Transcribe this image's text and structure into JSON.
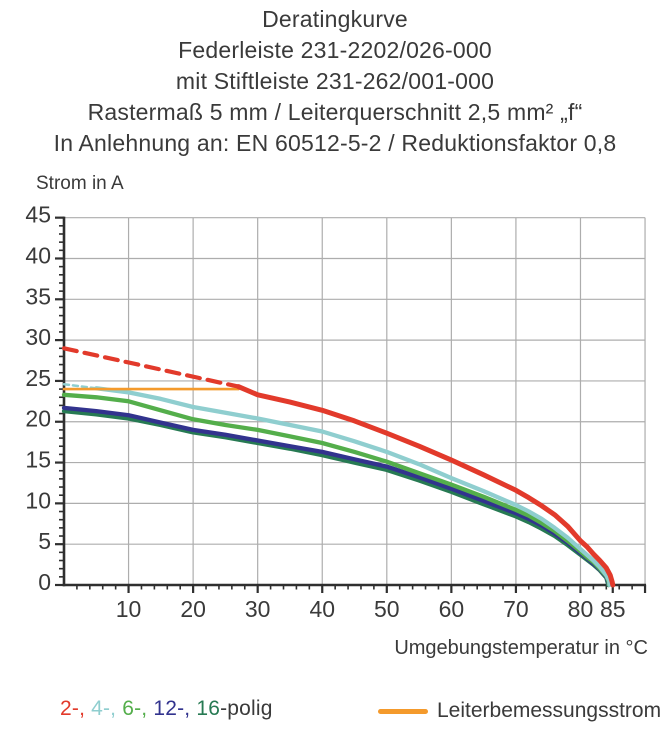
{
  "titles": [
    "Deratingkurve",
    "Federleiste 231-2202/026-000",
    "mit Stiftleiste 231-262/001-000",
    "Rastermaß 5 mm / Leiterquerschnitt 2,5 mm² „f“",
    "In Anlehnung an: EN 60512-5-2 / Reduktionsfaktor 0,8"
  ],
  "chart_data": {
    "type": "line",
    "title": "Deratingkurve",
    "xlabel": "Umgebungstemperatur in °C",
    "ylabel": "Strom in A",
    "xlim": [
      0,
      90
    ],
    "ylim": [
      0,
      45
    ],
    "x_major_ticks": [
      10,
      20,
      30,
      40,
      50,
      60,
      70,
      80,
      85
    ],
    "y_major_ticks": [
      0,
      5,
      10,
      15,
      20,
      25,
      30,
      35,
      40,
      45
    ],
    "x_grid_step": 10,
    "y_grid_step": 5,
    "x_minor_step": 2,
    "y_minor_step": 1,
    "grid": true,
    "legend_position": "bottom",
    "colors": {
      "grid": "#adadad",
      "axis": "#2f2f2f",
      "text": "#3a3a3a"
    },
    "series": [
      {
        "name": "16-polig",
        "color": "#277a53",
        "style": "solid",
        "width": 4.3,
        "points": [
          [
            0,
            21.3
          ],
          [
            5,
            20.9
          ],
          [
            10,
            20.4
          ],
          [
            15,
            19.6
          ],
          [
            20,
            18.7
          ],
          [
            25,
            18.1
          ],
          [
            30,
            17.4
          ],
          [
            35,
            16.7
          ],
          [
            40,
            15.9
          ],
          [
            45,
            15.0
          ],
          [
            50,
            14.1
          ],
          [
            55,
            12.8
          ],
          [
            60,
            11.4
          ],
          [
            65,
            9.9
          ],
          [
            70,
            8.4
          ],
          [
            72,
            7.7
          ],
          [
            74,
            6.9
          ],
          [
            76,
            6.0
          ],
          [
            78,
            4.9
          ],
          [
            80,
            3.7
          ],
          [
            81,
            3.1
          ],
          [
            82,
            2.5
          ],
          [
            83,
            1.8
          ],
          [
            84,
            0.9
          ],
          [
            84.25,
            0.2
          ],
          [
            84.3,
            0
          ]
        ]
      },
      {
        "name": "12-polig",
        "color": "#32338e",
        "style": "solid",
        "width": 4.3,
        "points": [
          [
            0,
            21.7
          ],
          [
            5,
            21.3
          ],
          [
            10,
            20.8
          ],
          [
            15,
            19.9
          ],
          [
            20,
            19.0
          ],
          [
            25,
            18.4
          ],
          [
            30,
            17.7
          ],
          [
            35,
            17.0
          ],
          [
            40,
            16.3
          ],
          [
            45,
            15.4
          ],
          [
            50,
            14.5
          ],
          [
            55,
            13.2
          ],
          [
            60,
            11.8
          ],
          [
            65,
            10.3
          ],
          [
            70,
            8.8
          ],
          [
            72,
            8.1
          ],
          [
            74,
            7.3
          ],
          [
            76,
            6.3
          ],
          [
            78,
            5.2
          ],
          [
            80,
            3.9
          ],
          [
            81,
            3.3
          ],
          [
            82,
            2.6
          ],
          [
            83,
            1.9
          ],
          [
            84,
            1.0
          ],
          [
            84.3,
            0.3
          ],
          [
            84.35,
            0
          ]
        ]
      },
      {
        "name": "6-polig",
        "color": "#54ae4b",
        "style": "solid",
        "width": 4.3,
        "points": [
          [
            0,
            23.3
          ],
          [
            5,
            23.0
          ],
          [
            10,
            22.5
          ],
          [
            15,
            21.4
          ],
          [
            20,
            20.3
          ],
          [
            25,
            19.6
          ],
          [
            30,
            19.0
          ],
          [
            35,
            18.2
          ],
          [
            40,
            17.4
          ],
          [
            45,
            16.3
          ],
          [
            50,
            15.1
          ],
          [
            55,
            13.7
          ],
          [
            60,
            12.3
          ],
          [
            65,
            10.8
          ],
          [
            70,
            9.2
          ],
          [
            72,
            8.5
          ],
          [
            74,
            7.6
          ],
          [
            76,
            6.6
          ],
          [
            78,
            5.4
          ],
          [
            80,
            4.1
          ],
          [
            81,
            3.4
          ],
          [
            82,
            2.8
          ],
          [
            83,
            2.0
          ],
          [
            84,
            1.1
          ],
          [
            84.35,
            0.4
          ],
          [
            84.4,
            0
          ]
        ]
      },
      {
        "name": "4-polig-dashed",
        "color": "#8fcecf",
        "style": "dashed-short",
        "width": 2.5,
        "points": [
          [
            0,
            24.6
          ],
          [
            5,
            24.1
          ]
        ]
      },
      {
        "name": "4-polig",
        "color": "#8fcecf",
        "style": "solid",
        "width": 4.3,
        "points": [
          [
            5,
            24.1
          ],
          [
            10,
            23.6
          ],
          [
            15,
            22.8
          ],
          [
            20,
            21.8
          ],
          [
            25,
            21.1
          ],
          [
            30,
            20.4
          ],
          [
            35,
            19.6
          ],
          [
            40,
            18.8
          ],
          [
            45,
            17.6
          ],
          [
            50,
            16.3
          ],
          [
            55,
            14.8
          ],
          [
            60,
            13.1
          ],
          [
            65,
            11.5
          ],
          [
            70,
            9.8
          ],
          [
            72,
            9.0
          ],
          [
            74,
            8.1
          ],
          [
            76,
            7.0
          ],
          [
            78,
            5.8
          ],
          [
            80,
            4.4
          ],
          [
            81,
            3.7
          ],
          [
            82,
            3.0
          ],
          [
            83,
            2.2
          ],
          [
            84,
            1.2
          ],
          [
            84.45,
            0.5
          ],
          [
            84.5,
            0
          ]
        ]
      },
      {
        "name": "Leiterbemessungsstrom",
        "color": "#f49a2c",
        "style": "solid",
        "width": 2.6,
        "points": [
          [
            0,
            24
          ],
          [
            27,
            24
          ]
        ]
      },
      {
        "name": "2-polig-dashed",
        "color": "#e23a2b",
        "style": "dashed-long",
        "width": 4.2,
        "points": [
          [
            0,
            29
          ],
          [
            27,
            24.3
          ]
        ]
      },
      {
        "name": "2-polig",
        "color": "#e23a2b",
        "style": "solid",
        "width": 5,
        "points": [
          [
            27,
            24.3
          ],
          [
            30,
            23.3
          ],
          [
            35,
            22.4
          ],
          [
            40,
            21.4
          ],
          [
            45,
            20.1
          ],
          [
            50,
            18.6
          ],
          [
            55,
            17.0
          ],
          [
            60,
            15.3
          ],
          [
            65,
            13.5
          ],
          [
            70,
            11.6
          ],
          [
            72,
            10.7
          ],
          [
            74,
            9.7
          ],
          [
            76,
            8.6
          ],
          [
            78,
            7.2
          ],
          [
            80,
            5.4
          ],
          [
            81,
            4.7
          ],
          [
            82,
            3.8
          ],
          [
            83,
            3.0
          ],
          [
            84,
            2.1
          ],
          [
            84.6,
            1.2
          ],
          [
            84.9,
            0.4
          ],
          [
            85,
            0
          ]
        ]
      }
    ]
  },
  "y_axis_title": "Strom in A",
  "x_axis_title": "Umgebungstemperatur in °C",
  "legend": {
    "pole_items": [
      {
        "text": "2-,",
        "color": "#e23a2b"
      },
      {
        "text": "4-,",
        "color": "#8fcecf"
      },
      {
        "text": "6-,",
        "color": "#54ae4b"
      },
      {
        "text": "12-,",
        "color": "#32338e"
      },
      {
        "text": "16",
        "color": "#277a53"
      }
    ],
    "poles_suffix": "-polig",
    "rated_label": "Leiterbemessungsstrom",
    "rated_color": "#f49a2c"
  }
}
